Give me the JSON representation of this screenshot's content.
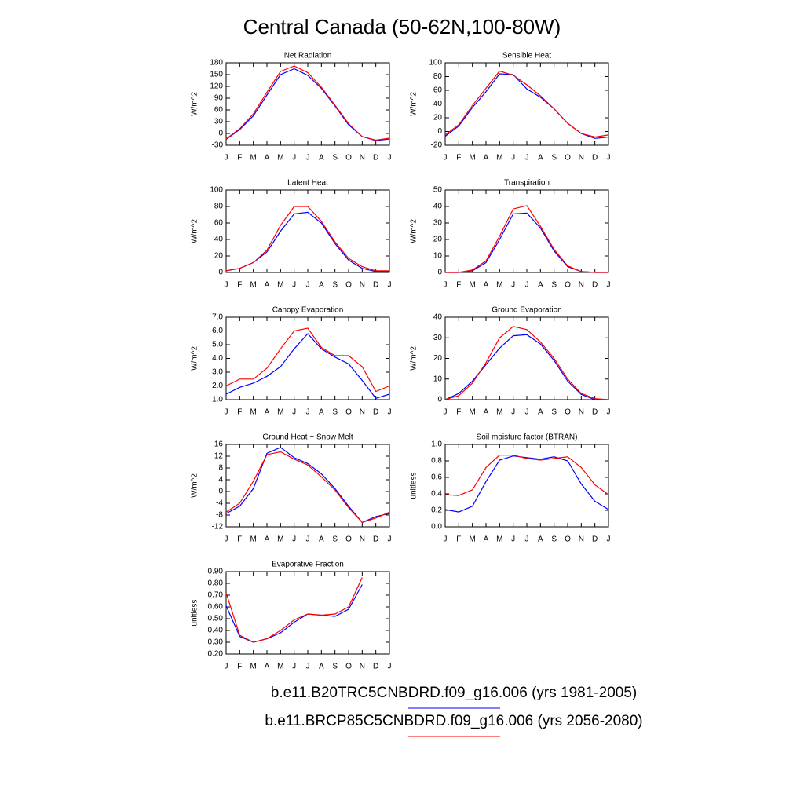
{
  "title": "Central Canada (50-62N,100-80W)",
  "legend": [
    {
      "name": "b.e11.B20TRC5CNBDRD.f09_g16.006 (yrs 1981-2005)",
      "color": "#0000ff"
    },
    {
      "name": "b.e11.BRCP85C5CNBDRD.f09_g16.006 (yrs 2056-2080)",
      "color": "#ff0000"
    }
  ],
  "chart_data": [
    {
      "type": "line",
      "title": "Net Radiation",
      "ylabel": "W/m^2",
      "categories": [
        "J",
        "F",
        "M",
        "A",
        "M",
        "J",
        "J",
        "A",
        "S",
        "O",
        "N",
        "D",
        "J"
      ],
      "ylim": [
        -30,
        180
      ],
      "yticks": [
        -30,
        0,
        30,
        60,
        90,
        120,
        150,
        180
      ],
      "series": [
        {
          "values": [
            -15,
            10,
            45,
            98,
            150,
            165,
            148,
            115,
            70,
            22,
            -8,
            -18,
            -14
          ]
        },
        {
          "values": [
            -14,
            12,
            50,
            105,
            158,
            172,
            155,
            118,
            72,
            25,
            -8,
            -17,
            -12
          ]
        }
      ]
    },
    {
      "type": "line",
      "title": "Sensible Heat",
      "ylabel": "W/m^2",
      "categories": [
        "J",
        "F",
        "M",
        "A",
        "M",
        "J",
        "J",
        "A",
        "S",
        "O",
        "N",
        "D",
        "J"
      ],
      "ylim": [
        -20,
        100
      ],
      "yticks": [
        -20,
        0,
        20,
        40,
        60,
        80,
        100
      ],
      "series": [
        {
          "values": [
            -7,
            8,
            35,
            58,
            84,
            83,
            62,
            50,
            33,
            12,
            -3,
            -10,
            -8
          ]
        },
        {
          "values": [
            -5,
            10,
            38,
            63,
            88,
            82,
            68,
            52,
            33,
            12,
            -3,
            -8,
            -5
          ]
        }
      ]
    },
    {
      "type": "line",
      "title": "Latent Heat",
      "ylabel": "W/m^2",
      "categories": [
        "J",
        "F",
        "M",
        "A",
        "M",
        "J",
        "J",
        "A",
        "S",
        "O",
        "N",
        "D",
        "J"
      ],
      "ylim": [
        0,
        100
      ],
      "yticks": [
        0,
        20,
        40,
        60,
        80,
        100
      ],
      "series": [
        {
          "values": [
            2,
            5,
            12,
            25,
            50,
            71,
            73,
            60,
            35,
            15,
            5,
            1,
            1
          ]
        },
        {
          "values": [
            2,
            5,
            12,
            27,
            57,
            80,
            80,
            62,
            37,
            17,
            7,
            2,
            2
          ]
        }
      ]
    },
    {
      "type": "line",
      "title": "Transpiration",
      "ylabel": "W/m^2",
      "categories": [
        "J",
        "F",
        "M",
        "A",
        "M",
        "J",
        "J",
        "A",
        "S",
        "O",
        "N",
        "D",
        "J"
      ],
      "ylim": [
        0,
        50
      ],
      "yticks": [
        0,
        10,
        20,
        30,
        40,
        50
      ],
      "series": [
        {
          "values": [
            0,
            0,
            1,
            6,
            20,
            35.5,
            36,
            27,
            13,
            3.5,
            0.5,
            0,
            0
          ]
        },
        {
          "values": [
            0,
            0,
            1.5,
            7,
            22,
            38.5,
            40.5,
            28,
            14,
            4,
            0.5,
            0,
            0
          ]
        }
      ]
    },
    {
      "type": "line",
      "title": "Canopy Evaporation",
      "ylabel": "W/m^2",
      "categories": [
        "J",
        "F",
        "M",
        "A",
        "M",
        "J",
        "J",
        "A",
        "S",
        "O",
        "N",
        "D",
        "J"
      ],
      "ylim": [
        1,
        7
      ],
      "yticks": [
        {
          "value": 1,
          "label": "1.0"
        },
        {
          "value": 2,
          "label": "2.0"
        },
        {
          "value": 3,
          "label": "3.0"
        },
        {
          "value": 4,
          "label": "4.0"
        },
        {
          "value": 5,
          "label": "5.0"
        },
        {
          "value": 6,
          "label": "6.0"
        },
        {
          "value": 7,
          "label": "7.0"
        }
      ],
      "series": [
        {
          "values": [
            1.4,
            1.9,
            2.2,
            2.7,
            3.4,
            4.7,
            5.8,
            4.7,
            4.1,
            3.6,
            2.4,
            1.1,
            1.4
          ]
        },
        {
          "values": [
            2.0,
            2.5,
            2.5,
            3.3,
            4.7,
            6.0,
            6.2,
            4.8,
            4.2,
            4.2,
            3.4,
            1.6,
            2.0
          ]
        }
      ]
    },
    {
      "type": "line",
      "title": "Ground Evaporation",
      "ylabel": "W/m^2",
      "categories": [
        "J",
        "F",
        "M",
        "A",
        "M",
        "J",
        "J",
        "A",
        "S",
        "O",
        "N",
        "D",
        "J"
      ],
      "ylim": [
        0,
        40
      ],
      "yticks": [
        0,
        10,
        20,
        30,
        40
      ],
      "series": [
        {
          "values": [
            0,
            3,
            9,
            17,
            25,
            31,
            31.5,
            27,
            19,
            9,
            2.5,
            0,
            0
          ]
        },
        {
          "values": [
            0,
            2,
            8,
            18,
            30,
            35.5,
            34,
            28,
            20,
            10,
            3,
            0.5,
            0
          ]
        }
      ]
    },
    {
      "type": "line",
      "title": "Ground Heat + Snow Melt",
      "ylabel": "W/m^2",
      "categories": [
        "J",
        "F",
        "M",
        "A",
        "M",
        "J",
        "J",
        "A",
        "S",
        "O",
        "N",
        "D",
        "J"
      ],
      "ylim": [
        -12,
        16
      ],
      "yticks": [
        -12,
        -8,
        -4,
        0,
        4,
        8,
        12,
        16
      ],
      "series": [
        {
          "values": [
            -7.5,
            -5,
            1,
            13,
            15,
            11.5,
            9.5,
            6,
            1,
            -5,
            -10.5,
            -8.5,
            -7.5
          ]
        },
        {
          "values": [
            -7,
            -4,
            3.5,
            12.5,
            13.5,
            11,
            9,
            5,
            0.5,
            -5.5,
            -10.5,
            -9,
            -7
          ]
        }
      ]
    },
    {
      "type": "line",
      "title": "Soil moisture factor (BTRAN)",
      "ylabel": "unitless",
      "categories": [
        "J",
        "F",
        "M",
        "A",
        "M",
        "J",
        "J",
        "A",
        "S",
        "O",
        "N",
        "D",
        "J"
      ],
      "ylim": [
        0,
        1
      ],
      "yticks": [
        {
          "value": 0,
          "label": "0.0"
        },
        0.2,
        0.4,
        0.6,
        0.8,
        {
          "value": 1,
          "label": "1.0"
        }
      ],
      "series": [
        {
          "values": [
            0.21,
            0.18,
            0.25,
            0.55,
            0.81,
            0.86,
            0.84,
            0.82,
            0.85,
            0.8,
            0.52,
            0.31,
            0.21
          ]
        },
        {
          "values": [
            0.39,
            0.38,
            0.45,
            0.72,
            0.87,
            0.87,
            0.83,
            0.81,
            0.83,
            0.85,
            0.72,
            0.51,
            0.39
          ]
        }
      ]
    },
    {
      "type": "line",
      "title": "Evaporative Fraction",
      "ylabel": "unitless",
      "categories": [
        "J",
        "F",
        "M",
        "A",
        "M",
        "J",
        "J",
        "A",
        "S",
        "O",
        "N",
        "D",
        "J"
      ],
      "ylim": [
        0.2,
        0.9
      ],
      "yticks": [
        {
          "value": 0.2,
          "label": "0.20"
        },
        {
          "value": 0.3,
          "label": "0.30"
        },
        {
          "value": 0.4,
          "label": "0.40"
        },
        {
          "value": 0.5,
          "label": "0.50"
        },
        {
          "value": 0.6,
          "label": "0.60"
        },
        {
          "value": 0.7,
          "label": "0.70"
        },
        {
          "value": 0.8,
          "label": "0.80"
        },
        {
          "value": 0.9,
          "label": "0.90"
        }
      ],
      "series": [
        {
          "values": [
            0.61,
            0.35,
            0.3,
            0.33,
            0.38,
            0.47,
            0.54,
            0.53,
            0.52,
            0.58,
            0.79,
            null,
            null
          ]
        },
        {
          "values": [
            0.72,
            0.36,
            0.3,
            0.33,
            0.4,
            0.49,
            0.54,
            0.53,
            0.54,
            0.6,
            0.85,
            null,
            null
          ]
        }
      ]
    }
  ]
}
